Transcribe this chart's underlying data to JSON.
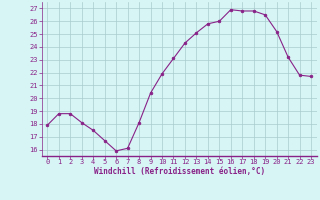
{
  "x": [
    0,
    1,
    2,
    3,
    4,
    5,
    6,
    7,
    8,
    9,
    10,
    11,
    12,
    13,
    14,
    15,
    16,
    17,
    18,
    19,
    20,
    21,
    22,
    23
  ],
  "y": [
    17.9,
    18.8,
    18.8,
    18.1,
    17.5,
    16.7,
    15.9,
    16.1,
    18.1,
    20.4,
    21.9,
    23.1,
    24.3,
    25.1,
    25.8,
    26.0,
    26.9,
    26.8,
    26.8,
    26.5,
    25.2,
    23.2,
    21.8,
    21.7
  ],
  "ylim": [
    15.5,
    27.5
  ],
  "yticks": [
    16,
    17,
    18,
    19,
    20,
    21,
    22,
    23,
    24,
    25,
    26,
    27
  ],
  "xticks": [
    0,
    1,
    2,
    3,
    4,
    5,
    6,
    7,
    8,
    9,
    10,
    11,
    12,
    13,
    14,
    15,
    16,
    17,
    18,
    19,
    20,
    21,
    22,
    23
  ],
  "xlabel": "Windchill (Refroidissement éolien,°C)",
  "line_color": "#882288",
  "marker_color": "#882288",
  "bg_color": "#d8f5f5",
  "grid_color": "#aacccc",
  "axis_label_color": "#882288",
  "tick_label_color": "#882288"
}
